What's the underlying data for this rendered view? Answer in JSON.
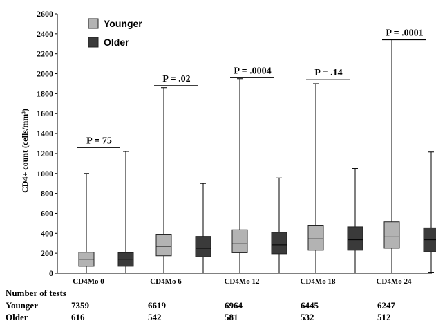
{
  "chart_data": {
    "type": "boxplot",
    "ylabel": "CD4+ count (cells/mm³)",
    "ylim": [
      0,
      2600
    ],
    "yticks": [
      0,
      200,
      400,
      600,
      800,
      1000,
      1200,
      1400,
      1600,
      1800,
      2000,
      2200,
      2400,
      2600
    ],
    "categories": [
      "CD4Mo 0",
      "CD4Mo 6",
      "CD4Mo 12",
      "CD4Mo 18",
      "CD4Mo 24"
    ],
    "legend": {
      "position": "top-left",
      "entries": [
        "Younger",
        "Older"
      ]
    },
    "series": [
      {
        "name": "Younger",
        "color": "#b3b3b3",
        "boxes": [
          {
            "min": 0,
            "q1": 70,
            "median": 140,
            "q3": 210,
            "max": 1000
          },
          {
            "min": 0,
            "q1": 175,
            "median": 270,
            "q3": 385,
            "max": 1860
          },
          {
            "min": 0,
            "q1": 205,
            "median": 300,
            "q3": 435,
            "max": 1950
          },
          {
            "min": 0,
            "q1": 230,
            "median": 345,
            "q3": 475,
            "max": 1900
          },
          {
            "min": 0,
            "q1": 250,
            "median": 365,
            "q3": 515,
            "max": 2340
          }
        ]
      },
      {
        "name": "Older",
        "color": "#3a3a3a",
        "boxes": [
          {
            "min": 0,
            "q1": 70,
            "median": 140,
            "q3": 205,
            "max": 1220
          },
          {
            "min": 0,
            "q1": 165,
            "median": 250,
            "q3": 370,
            "max": 900
          },
          {
            "min": 0,
            "q1": 195,
            "median": 285,
            "q3": 410,
            "max": 955
          },
          {
            "min": 0,
            "q1": 230,
            "median": 335,
            "q3": 465,
            "max": 1050
          },
          {
            "min": 10,
            "q1": 215,
            "median": 335,
            "q3": 455,
            "max": 1215
          }
        ]
      }
    ],
    "annotations": [
      {
        "label": "P = 75",
        "y": 1260
      },
      {
        "label": "P = .02",
        "y": 1880
      },
      {
        "label": "P = .0004",
        "y": 1960
      },
      {
        "label": "P = .14",
        "y": 1940
      },
      {
        "label": "P = .0001",
        "y": 2340
      }
    ]
  },
  "table": {
    "header": "Number of tests",
    "rows": [
      {
        "label": "Younger",
        "values": [
          "7359",
          "6619",
          "6964",
          "6445",
          "6247"
        ]
      },
      {
        "label": "Older",
        "values": [
          "616",
          "542",
          "581",
          "532",
          "512"
        ]
      }
    ]
  }
}
